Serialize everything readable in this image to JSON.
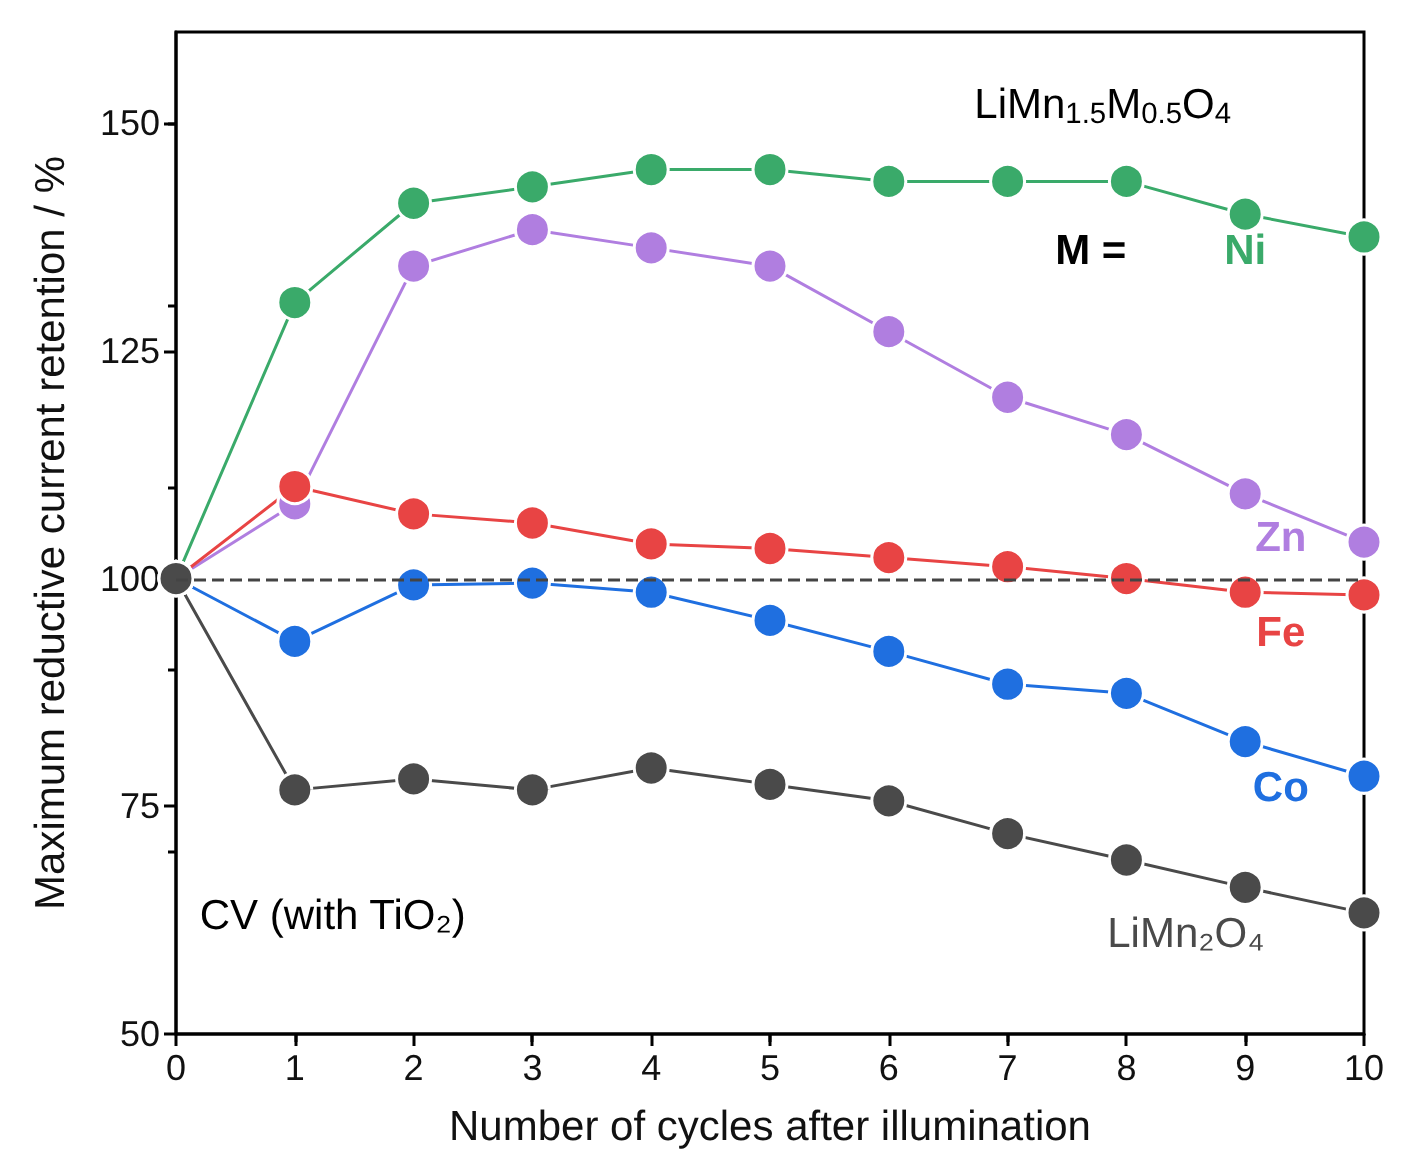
{
  "chart_data": {
    "type": "line",
    "xlabel": "Number of cycles after illumination",
    "ylabel": "Maximum reductive current retention / %",
    "x": [
      0,
      1,
      2,
      3,
      4,
      5,
      6,
      7,
      8,
      9,
      10
    ],
    "series": [
      {
        "name": "Ni",
        "color": "#3aaa6a",
        "values": [
          100,
          130.3,
          141.2,
          143.0,
          144.9,
          144.9,
          143.6,
          143.6,
          143.6,
          140.0,
          137.5
        ]
      },
      {
        "name": "Zn",
        "color": "#b07ee0",
        "values": [
          100,
          108.2,
          134.3,
          138.3,
          136.3,
          134.3,
          127.1,
          119.9,
          115.8,
          109.3,
          104.0
        ]
      },
      {
        "name": "Fe",
        "color": "#e84444",
        "values": [
          100,
          110.1,
          107.1,
          106.1,
          103.8,
          103.3,
          102.3,
          101.3,
          100.0,
          98.5,
          98.2
        ]
      },
      {
        "name": "Co",
        "color": "#1f6fe0",
        "values": [
          100,
          93.1,
          99.3,
          99.5,
          98.5,
          95.4,
          92.0,
          88.4,
          87.4,
          82.1,
          78.3
        ]
      },
      {
        "name": "LiMn₂O₄",
        "color": "#4a4a4a",
        "values": [
          100,
          76.8,
          78.0,
          76.8,
          79.2,
          77.4,
          75.6,
          72.0,
          69.1,
          66.1,
          63.3
        ]
      }
    ],
    "xlim": [
      0,
      10
    ],
    "xticks": [
      0,
      1,
      2,
      3,
      4,
      5,
      6,
      7,
      8,
      9,
      10
    ],
    "ylim": [
      50,
      160
    ],
    "yticks": [
      50,
      75,
      100,
      125,
      150
    ],
    "ref_lines": [
      {
        "axis": "y",
        "value": 100,
        "color": "#444444",
        "line_style": "dashed"
      }
    ],
    "annotations": [
      "LiMn$_{1.5}$M$_{0.5}$O$_{4}$",
      "M =",
      "CV (with TiO₂)"
    ],
    "marker": "circle",
    "grid": false,
    "legend": false
  }
}
